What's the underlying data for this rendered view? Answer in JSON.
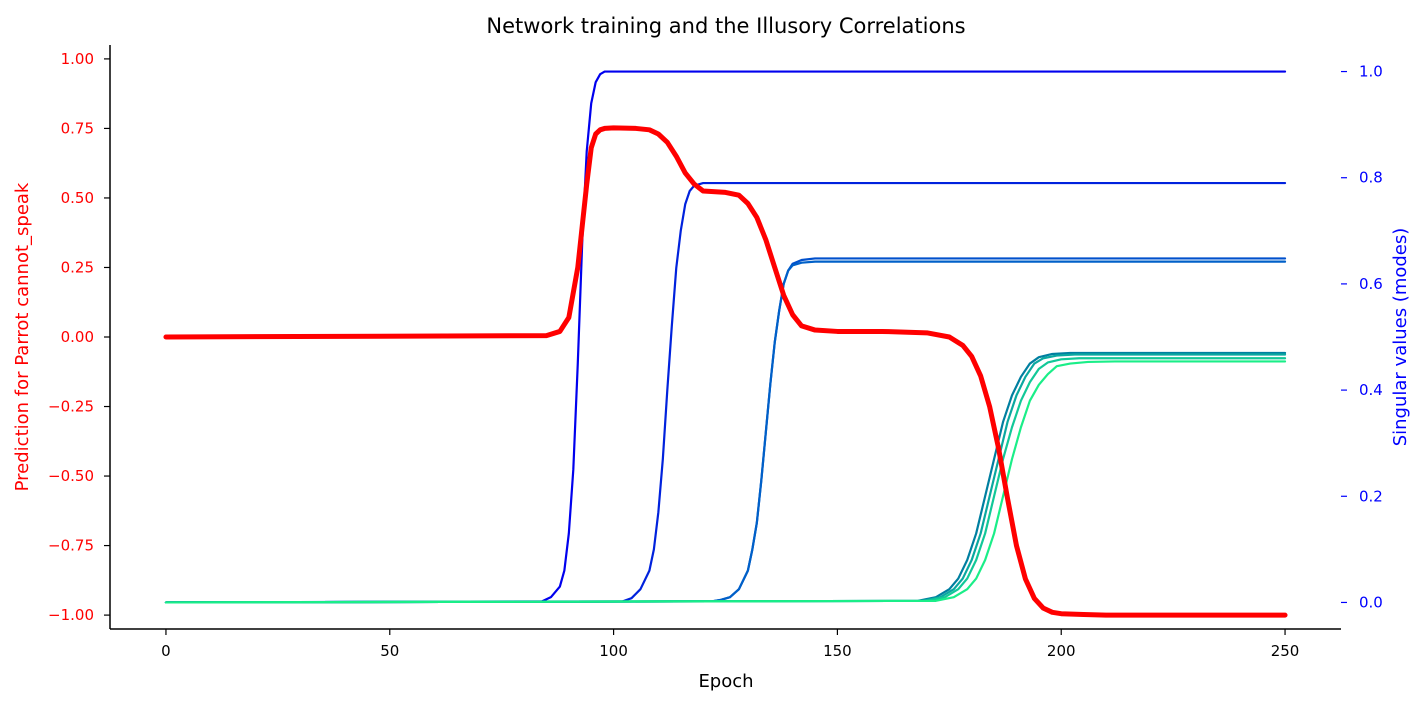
{
  "chart_data": {
    "type": "line",
    "title": "Network training and the Illusory Correlations",
    "xlabel": "Epoch",
    "ylabel_left": "Prediction for Parrot cannot_speak",
    "ylabel_right": "Singular values (modes)",
    "xlim": [
      -12.5,
      262.5
    ],
    "ylim_left": [
      -1.05,
      1.05
    ],
    "ylim_right": [
      -0.05,
      1.05
    ],
    "xticks": [
      0,
      50,
      100,
      150,
      200,
      250
    ],
    "yticks_left": [
      1.0,
      0.75,
      0.5,
      0.25,
      0.0,
      -0.25,
      -0.5,
      -0.75,
      -1.0
    ],
    "yticks_left_labels": [
      "1.00",
      "0.75",
      "0.50",
      "0.25",
      "0.00",
      "−0.25",
      "−0.50",
      "−0.75",
      "−1.00"
    ],
    "yticks_right": [
      0.0,
      0.2,
      0.4,
      0.6,
      0.8,
      1.0
    ],
    "yticks_right_labels": [
      "0.0",
      "0.2",
      "0.4",
      "0.6",
      "0.8",
      "1.0"
    ],
    "colors": {
      "left_axis": "#ff0000",
      "right_axis": "#0000ff"
    },
    "grid": false,
    "prediction": {
      "color": "#ff0000",
      "x": [
        0,
        85,
        88,
        90,
        92,
        93,
        94,
        95,
        96,
        97,
        98,
        100,
        105,
        108,
        110,
        112,
        114,
        116,
        118,
        120,
        125,
        128,
        130,
        132,
        134,
        136,
        138,
        140,
        142,
        145,
        150,
        160,
        170,
        175,
        178,
        180,
        182,
        184,
        186,
        188,
        190,
        192,
        194,
        196,
        198,
        200,
        205,
        210,
        250
      ],
      "y": [
        0.0,
        0.005,
        0.02,
        0.07,
        0.25,
        0.4,
        0.55,
        0.68,
        0.73,
        0.745,
        0.75,
        0.752,
        0.75,
        0.745,
        0.73,
        0.7,
        0.65,
        0.59,
        0.55,
        0.525,
        0.52,
        0.51,
        0.48,
        0.43,
        0.35,
        0.25,
        0.15,
        0.08,
        0.04,
        0.025,
        0.02,
        0.02,
        0.015,
        0.0,
        -0.03,
        -0.07,
        -0.14,
        -0.25,
        -0.4,
        -0.58,
        -0.75,
        -0.87,
        -0.94,
        -0.975,
        -0.99,
        -0.995,
        -0.998,
        -1.0,
        -1.0
      ]
    },
    "modes": [
      {
        "color": "#0000ee",
        "x": [
          0,
          84,
          86,
          88,
          89,
          90,
          91,
          92,
          93,
          94,
          95,
          96,
          97,
          98,
          100,
          250
        ],
        "y": [
          0.0,
          0.002,
          0.01,
          0.03,
          0.06,
          0.13,
          0.25,
          0.45,
          0.68,
          0.85,
          0.94,
          0.98,
          0.995,
          1.0,
          1.0,
          1.0
        ]
      },
      {
        "color": "#0022dd",
        "x": [
          0,
          102,
          104,
          106,
          108,
          109,
          110,
          111,
          112,
          113,
          114,
          115,
          116,
          117,
          118,
          120,
          125,
          250
        ],
        "y": [
          0.0,
          0.002,
          0.008,
          0.025,
          0.06,
          0.1,
          0.17,
          0.27,
          0.4,
          0.52,
          0.63,
          0.7,
          0.75,
          0.775,
          0.785,
          0.79,
          0.79,
          0.79
        ]
      },
      {
        "color": "#0050cc",
        "x": [
          0,
          122,
          124,
          126,
          128,
          130,
          131,
          132,
          133,
          134,
          135,
          136,
          137,
          138,
          139,
          140,
          142,
          145,
          150,
          250
        ],
        "y": [
          0.0,
          0.002,
          0.005,
          0.01,
          0.025,
          0.06,
          0.1,
          0.15,
          0.23,
          0.32,
          0.41,
          0.49,
          0.55,
          0.6,
          0.625,
          0.638,
          0.645,
          0.648,
          0.648,
          0.648
        ]
      },
      {
        "color": "#0060c8",
        "x": [
          0,
          122,
          124,
          126,
          128,
          130,
          131,
          132,
          133,
          134,
          135,
          136,
          137,
          138,
          139,
          140,
          142,
          145,
          150,
          250
        ],
        "y": [
          0.0,
          0.002,
          0.005,
          0.01,
          0.025,
          0.06,
          0.1,
          0.15,
          0.23,
          0.32,
          0.41,
          0.49,
          0.55,
          0.6,
          0.625,
          0.635,
          0.64,
          0.642,
          0.642,
          0.642
        ]
      },
      {
        "color": "#007fa0",
        "x": [
          0,
          168,
          172,
          175,
          177,
          179,
          181,
          183,
          185,
          187,
          189,
          191,
          193,
          195,
          198,
          202,
          210,
          250
        ],
        "y": [
          0.0,
          0.003,
          0.01,
          0.025,
          0.045,
          0.08,
          0.13,
          0.2,
          0.27,
          0.34,
          0.39,
          0.425,
          0.45,
          0.462,
          0.468,
          0.47,
          0.47,
          0.47
        ]
      },
      {
        "color": "#0aa8a0",
        "x": [
          0,
          169,
          173,
          176,
          178,
          180,
          182,
          184,
          186,
          188,
          190,
          192,
          194,
          196,
          199,
          203,
          210,
          250
        ],
        "y": [
          0.0,
          0.003,
          0.01,
          0.025,
          0.045,
          0.08,
          0.13,
          0.2,
          0.27,
          0.34,
          0.39,
          0.425,
          0.45,
          0.46,
          0.465,
          0.467,
          0.467,
          0.467
        ]
      },
      {
        "color": "#12c898",
        "x": [
          0,
          170,
          174,
          177,
          179,
          181,
          183,
          185,
          187,
          189,
          191,
          193,
          195,
          197,
          200,
          204,
          210,
          250
        ],
        "y": [
          0.0,
          0.003,
          0.01,
          0.025,
          0.045,
          0.08,
          0.13,
          0.2,
          0.27,
          0.33,
          0.38,
          0.415,
          0.44,
          0.452,
          0.458,
          0.46,
          0.46,
          0.46
        ]
      },
      {
        "color": "#1aee88",
        "x": [
          0,
          172,
          176,
          179,
          181,
          183,
          185,
          187,
          189,
          191,
          193,
          195,
          197,
          199,
          202,
          206,
          212,
          250
        ],
        "y": [
          0.0,
          0.003,
          0.01,
          0.025,
          0.045,
          0.08,
          0.13,
          0.2,
          0.27,
          0.33,
          0.38,
          0.41,
          0.43,
          0.445,
          0.45,
          0.453,
          0.454,
          0.454
        ]
      }
    ]
  }
}
